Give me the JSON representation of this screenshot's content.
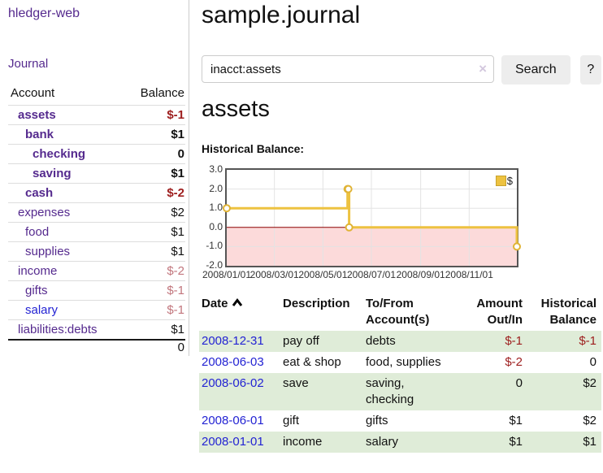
{
  "app": {
    "title": "hledger-web"
  },
  "sidebar": {
    "journal_link": "Journal",
    "accounts_table": {
      "account_header": "Account",
      "balance_header": "Balance",
      "rows": [
        {
          "account": "assets",
          "balance": "$-1",
          "indent": 1,
          "bold": true,
          "neg": "strong",
          "blue": false
        },
        {
          "account": "bank",
          "balance": "$1",
          "indent": 2,
          "bold": true,
          "neg": "none",
          "blue": false
        },
        {
          "account": "checking",
          "balance": "0",
          "indent": 3,
          "bold": true,
          "neg": "none",
          "blue": false
        },
        {
          "account": "saving",
          "balance": "$1",
          "indent": 3,
          "bold": true,
          "neg": "none",
          "blue": false
        },
        {
          "account": "cash",
          "balance": "$-2",
          "indent": 2,
          "bold": true,
          "neg": "strong",
          "blue": false
        },
        {
          "account": "expenses",
          "balance": "$2",
          "indent": 1,
          "bold": false,
          "neg": "none",
          "blue": false
        },
        {
          "account": "food",
          "balance": "$1",
          "indent": 2,
          "bold": false,
          "neg": "none",
          "blue": false
        },
        {
          "account": "supplies",
          "balance": "$1",
          "indent": 2,
          "bold": false,
          "neg": "none",
          "blue": false
        },
        {
          "account": "income",
          "balance": "$-2",
          "indent": 1,
          "bold": false,
          "neg": "soft",
          "blue": false
        },
        {
          "account": "gifts",
          "balance": "$-1",
          "indent": 2,
          "bold": false,
          "neg": "soft",
          "blue": false
        },
        {
          "account": "salary",
          "balance": "$-1",
          "indent": 2,
          "bold": false,
          "neg": "soft",
          "blue": true
        },
        {
          "account": "liabilities:debts",
          "balance": "$1",
          "indent": 1,
          "bold": false,
          "neg": "none",
          "blue": false
        }
      ],
      "total": "0"
    }
  },
  "main": {
    "title": "sample.journal",
    "search": {
      "value": "inacct:assets",
      "clear_glyph": "×",
      "search_button": "Search",
      "help_button": "?"
    },
    "account_heading": "assets",
    "chart_label": "Historical Balance:"
  },
  "chart_data": {
    "type": "line",
    "line_style": "step",
    "title": "Historical Balance",
    "series": [
      {
        "name": "$",
        "color": "#edc240",
        "points": [
          [
            "2008-01-01",
            1
          ],
          [
            "2008-06-01",
            2
          ],
          [
            "2008-06-02",
            2
          ],
          [
            "2008-06-03",
            0
          ],
          [
            "2008-12-31",
            -1
          ]
        ]
      }
    ],
    "xlim": [
      "2008-01-01",
      "2008-12-31"
    ],
    "ylim": [
      -2,
      3
    ],
    "x_ticks": [
      "2008/01/01",
      "2008/03/01",
      "2008/05/01",
      "2008/07/01",
      "2008/09/01",
      "2008/11/01"
    ],
    "y_ticks": [
      "3.0",
      "2.0",
      "1.0",
      "0.0",
      "-1.0",
      "-2.0"
    ],
    "grid": true,
    "legend_position": "top-right",
    "negative_region_color": "#fcdada",
    "zero_line_color": "#8b0000",
    "grid_color": "#e3e3e3"
  },
  "register": {
    "headers": {
      "date": "Date",
      "description": "Description",
      "tofrom": "To/From Account(s)",
      "amount": "Amount Out/In",
      "balance": "Historical Balance"
    },
    "sort_indicator": "ascending",
    "rows": [
      {
        "date": "2008-12-31",
        "description": "pay off",
        "tofrom": "debts",
        "amount": "$-1",
        "balance": "$-1",
        "amount_neg": true,
        "balance_neg": true
      },
      {
        "date": "2008-06-03",
        "description": "eat & shop",
        "tofrom": "food, supplies",
        "amount": "$-2",
        "balance": "0",
        "amount_neg": true,
        "balance_neg": false
      },
      {
        "date": "2008-06-02",
        "description": "save",
        "tofrom": "saving, checking",
        "amount": "0",
        "balance": "$2",
        "amount_neg": false,
        "balance_neg": false
      },
      {
        "date": "2008-06-01",
        "description": "gift",
        "tofrom": "gifts",
        "amount": "$1",
        "balance": "$2",
        "amount_neg": false,
        "balance_neg": false
      },
      {
        "date": "2008-01-01",
        "description": "income",
        "tofrom": "salary",
        "amount": "$1",
        "balance": "$1",
        "amount_neg": false,
        "balance_neg": false
      }
    ]
  }
}
